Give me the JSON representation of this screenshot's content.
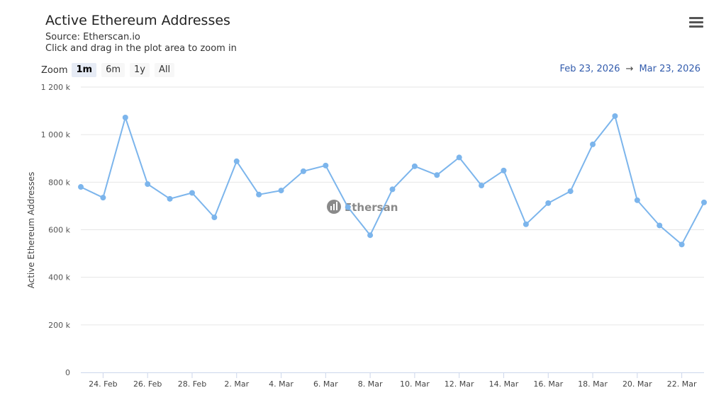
{
  "header": {
    "title": "Active Ethereum Addresses",
    "source": "Source: Etherscan.io",
    "hint": "Click and drag in the plot area to zoom in"
  },
  "toolbar": {
    "zoom_label": "Zoom",
    "zoom_options": [
      "1m",
      "6m",
      "1y",
      "All"
    ],
    "active_zoom": "1m",
    "menu_icon": "hamburger-menu-icon"
  },
  "date_range": {
    "from": "Feb 23, 2026",
    "arrow": "→",
    "to": "Mar 23, 2026"
  },
  "watermark": {
    "text": "Ethersan",
    "icon": "etherscan-logo-icon"
  },
  "colors": {
    "series": "#7cb5ec",
    "grid": "#e6e6e6",
    "accent": "#335cad"
  },
  "chart_data": {
    "type": "line",
    "title": "Active Ethereum Addresses",
    "ylabel": "Active Ethereum Addresses",
    "xlabel": "",
    "ylim": [
      0,
      1200000
    ],
    "grid": true,
    "y_ticks": [
      0,
      200000,
      400000,
      600000,
      800000,
      1000000,
      1200000
    ],
    "y_tick_labels": [
      "0",
      "200 k",
      "400 k",
      "600 k",
      "800 k",
      "1 000 k",
      "1 200 k"
    ],
    "x_tick_labels": [
      "24. Feb",
      "26. Feb",
      "28. Feb",
      "2. Mar",
      "4. Mar",
      "6. Mar",
      "8. Mar",
      "10. Mar",
      "12. Mar",
      "14. Mar",
      "16. Mar",
      "18. Mar",
      "20. Mar",
      "22. Mar"
    ],
    "x_tick_dates": [
      "2026-02-24",
      "2026-02-26",
      "2026-02-28",
      "2026-03-02",
      "2026-03-04",
      "2026-03-06",
      "2026-03-08",
      "2026-03-10",
      "2026-03-12",
      "2026-03-14",
      "2026-03-16",
      "2026-03-18",
      "2026-03-20",
      "2026-03-22"
    ],
    "x": [
      "2026-02-23",
      "2026-02-24",
      "2026-02-25",
      "2026-02-26",
      "2026-02-27",
      "2026-02-28",
      "2026-03-01",
      "2026-03-02",
      "2026-03-03",
      "2026-03-04",
      "2026-03-05",
      "2026-03-06",
      "2026-03-07",
      "2026-03-08",
      "2026-03-09",
      "2026-03-10",
      "2026-03-11",
      "2026-03-12",
      "2026-03-13",
      "2026-03-14",
      "2026-03-15",
      "2026-03-16",
      "2026-03-17",
      "2026-03-18",
      "2026-03-19",
      "2026-03-20",
      "2026-03-21",
      "2026-03-22",
      "2026-03-23"
    ],
    "series": [
      {
        "values": [
          780000,
          735000,
          1072000,
          792000,
          730000,
          755000,
          652000,
          888000,
          748000,
          765000,
          846000,
          870000,
          695000,
          577000,
          770000,
          867000,
          830000,
          904000,
          786000,
          849000,
          623000,
          712000,
          762000,
          959000,
          1078000,
          724000,
          618000,
          538000,
          715000
        ]
      }
    ]
  }
}
